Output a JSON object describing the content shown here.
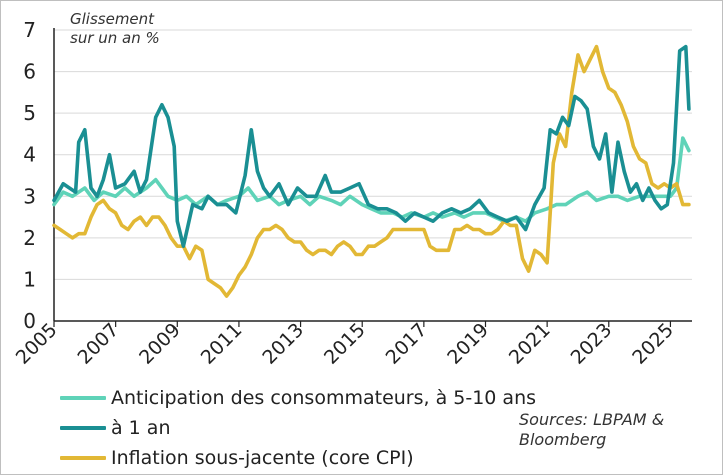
{
  "chart_data": {
    "type": "line",
    "ylabel_lines": [
      "Glissement",
      "sur un an %"
    ],
    "xlabel": "",
    "ylim": [
      0,
      7
    ],
    "xlim": [
      2005.0,
      2025.7
    ],
    "y_ticks": [
      "0",
      "1",
      "2",
      "3",
      "4",
      "5",
      "6",
      "7"
    ],
    "x_ticks": [
      "2005",
      "2007",
      "2009",
      "2011",
      "2013",
      "2015",
      "2017",
      "2019",
      "2021",
      "2023",
      "2025"
    ],
    "grid": "horizontal",
    "legend_position": "bottom-left",
    "series": [
      {
        "name": "Anticipation des consommateurs, à 5-10 ans",
        "color": "#5fd3b8",
        "x": [
          2005.0,
          2005.3,
          2005.6,
          2006.0,
          2006.3,
          2006.6,
          2007.0,
          2007.3,
          2007.6,
          2008.0,
          2008.3,
          2008.5,
          2008.7,
          2009.0,
          2009.3,
          2009.6,
          2010.0,
          2010.3,
          2010.6,
          2011.0,
          2011.3,
          2011.6,
          2012.0,
          2012.3,
          2012.6,
          2013.0,
          2013.3,
          2013.6,
          2014.0,
          2014.3,
          2014.6,
          2015.0,
          2015.3,
          2015.6,
          2016.0,
          2016.3,
          2016.6,
          2017.0,
          2017.3,
          2017.6,
          2018.0,
          2018.3,
          2018.6,
          2019.0,
          2019.3,
          2019.6,
          2020.0,
          2020.3,
          2020.6,
          2021.0,
          2021.3,
          2021.6,
          2022.0,
          2022.3,
          2022.6,
          2023.0,
          2023.3,
          2023.6,
          2024.0,
          2024.3,
          2024.6,
          2025.0,
          2025.2,
          2025.4,
          2025.6
        ],
        "y": [
          2.8,
          3.1,
          3.0,
          3.2,
          2.9,
          3.1,
          3.0,
          3.2,
          3.0,
          3.2,
          3.4,
          3.2,
          3.0,
          2.9,
          3.0,
          2.8,
          3.0,
          2.8,
          2.9,
          3.0,
          3.2,
          2.9,
          3.0,
          2.8,
          2.9,
          3.0,
          2.8,
          3.0,
          2.9,
          2.8,
          3.0,
          2.8,
          2.7,
          2.6,
          2.6,
          2.5,
          2.6,
          2.5,
          2.6,
          2.5,
          2.6,
          2.5,
          2.6,
          2.6,
          2.5,
          2.4,
          2.5,
          2.4,
          2.6,
          2.7,
          2.8,
          2.8,
          3.0,
          3.1,
          2.9,
          3.0,
          3.0,
          2.9,
          3.0,
          3.0,
          3.0,
          3.0,
          3.2,
          4.4,
          4.1
        ]
      },
      {
        "name": "à 1 an",
        "color": "#1a8f93",
        "x": [
          2005.0,
          2005.3,
          2005.5,
          2005.7,
          2005.8,
          2006.0,
          2006.2,
          2006.4,
          2006.6,
          2006.8,
          2007.0,
          2007.3,
          2007.6,
          2007.8,
          2008.0,
          2008.3,
          2008.5,
          2008.7,
          2008.9,
          2009.0,
          2009.2,
          2009.5,
          2009.8,
          2010.0,
          2010.3,
          2010.6,
          2010.9,
          2011.2,
          2011.4,
          2011.6,
          2011.8,
          2012.0,
          2012.3,
          2012.6,
          2012.9,
          2013.2,
          2013.5,
          2013.8,
          2014.0,
          2014.3,
          2014.6,
          2014.9,
          2015.2,
          2015.5,
          2015.8,
          2016.1,
          2016.4,
          2016.7,
          2017.0,
          2017.3,
          2017.6,
          2017.9,
          2018.2,
          2018.5,
          2018.8,
          2019.1,
          2019.4,
          2019.7,
          2020.0,
          2020.3,
          2020.6,
          2020.9,
          2021.1,
          2021.3,
          2021.5,
          2021.7,
          2021.9,
          2022.1,
          2022.3,
          2022.5,
          2022.7,
          2022.9,
          2023.1,
          2023.3,
          2023.5,
          2023.7,
          2023.9,
          2024.1,
          2024.3,
          2024.5,
          2024.7,
          2024.9,
          2025.1,
          2025.3,
          2025.5,
          2025.6
        ],
        "y": [
          2.9,
          3.3,
          3.2,
          3.1,
          4.3,
          4.6,
          3.2,
          3.0,
          3.4,
          4.0,
          3.2,
          3.3,
          3.6,
          3.1,
          3.4,
          4.9,
          5.2,
          4.9,
          4.2,
          2.4,
          1.8,
          2.8,
          2.7,
          3.0,
          2.8,
          2.8,
          2.6,
          3.5,
          4.6,
          3.6,
          3.2,
          3.0,
          3.3,
          2.8,
          3.2,
          3.0,
          3.0,
          3.5,
          3.1,
          3.1,
          3.2,
          3.3,
          2.8,
          2.7,
          2.7,
          2.6,
          2.4,
          2.6,
          2.5,
          2.4,
          2.6,
          2.7,
          2.6,
          2.7,
          2.9,
          2.6,
          2.5,
          2.4,
          2.5,
          2.2,
          2.8,
          3.2,
          4.6,
          4.5,
          4.9,
          4.7,
          5.4,
          5.3,
          5.1,
          4.2,
          3.9,
          4.5,
          3.1,
          4.3,
          3.6,
          3.1,
          3.3,
          2.9,
          3.2,
          2.9,
          2.7,
          2.8,
          3.8,
          6.5,
          6.6,
          5.1
        ]
      },
      {
        "name": "Inflation sous-jacente (core CPI)",
        "color": "#e2b835",
        "x": [
          2005.0,
          2005.2,
          2005.4,
          2005.6,
          2005.8,
          2006.0,
          2006.2,
          2006.4,
          2006.6,
          2006.8,
          2007.0,
          2007.2,
          2007.4,
          2007.6,
          2007.8,
          2008.0,
          2008.2,
          2008.4,
          2008.6,
          2008.8,
          2009.0,
          2009.2,
          2009.4,
          2009.6,
          2009.8,
          2010.0,
          2010.2,
          2010.4,
          2010.6,
          2010.8,
          2011.0,
          2011.2,
          2011.4,
          2011.6,
          2011.8,
          2012.0,
          2012.2,
          2012.4,
          2012.6,
          2012.8,
          2013.0,
          2013.2,
          2013.4,
          2013.6,
          2013.8,
          2014.0,
          2014.2,
          2014.4,
          2014.6,
          2014.8,
          2015.0,
          2015.2,
          2015.4,
          2015.6,
          2015.8,
          2016.0,
          2016.2,
          2016.4,
          2016.6,
          2016.8,
          2017.0,
          2017.2,
          2017.4,
          2017.6,
          2017.8,
          2018.0,
          2018.2,
          2018.4,
          2018.6,
          2018.8,
          2019.0,
          2019.2,
          2019.4,
          2019.6,
          2019.8,
          2020.0,
          2020.2,
          2020.4,
          2020.6,
          2020.8,
          2021.0,
          2021.2,
          2021.4,
          2021.6,
          2021.8,
          2022.0,
          2022.2,
          2022.4,
          2022.6,
          2022.8,
          2023.0,
          2023.2,
          2023.4,
          2023.6,
          2023.8,
          2024.0,
          2024.2,
          2024.4,
          2024.6,
          2024.8,
          2025.0,
          2025.2,
          2025.4,
          2025.6
        ],
        "y": [
          2.3,
          2.2,
          2.1,
          2.0,
          2.1,
          2.1,
          2.5,
          2.8,
          2.9,
          2.7,
          2.6,
          2.3,
          2.2,
          2.4,
          2.5,
          2.3,
          2.5,
          2.5,
          2.3,
          2.0,
          1.8,
          1.8,
          1.5,
          1.8,
          1.7,
          1.0,
          0.9,
          0.8,
          0.6,
          0.8,
          1.1,
          1.3,
          1.6,
          2.0,
          2.2,
          2.2,
          2.3,
          2.2,
          2.0,
          1.9,
          1.9,
          1.7,
          1.6,
          1.7,
          1.7,
          1.6,
          1.8,
          1.9,
          1.8,
          1.6,
          1.6,
          1.8,
          1.8,
          1.9,
          2.0,
          2.2,
          2.2,
          2.2,
          2.2,
          2.2,
          2.2,
          1.8,
          1.7,
          1.7,
          1.7,
          2.2,
          2.2,
          2.3,
          2.2,
          2.2,
          2.1,
          2.1,
          2.2,
          2.4,
          2.3,
          2.3,
          1.5,
          1.2,
          1.7,
          1.6,
          1.4,
          3.8,
          4.5,
          4.2,
          5.5,
          6.4,
          6.0,
          6.3,
          6.6,
          6.0,
          5.6,
          5.5,
          5.2,
          4.8,
          4.2,
          3.9,
          3.8,
          3.3,
          3.2,
          3.3,
          3.2,
          3.3,
          2.8,
          2.8
        ]
      }
    ]
  },
  "sources": [
    "Sources: LBPAM &",
    "Bloomberg"
  ]
}
